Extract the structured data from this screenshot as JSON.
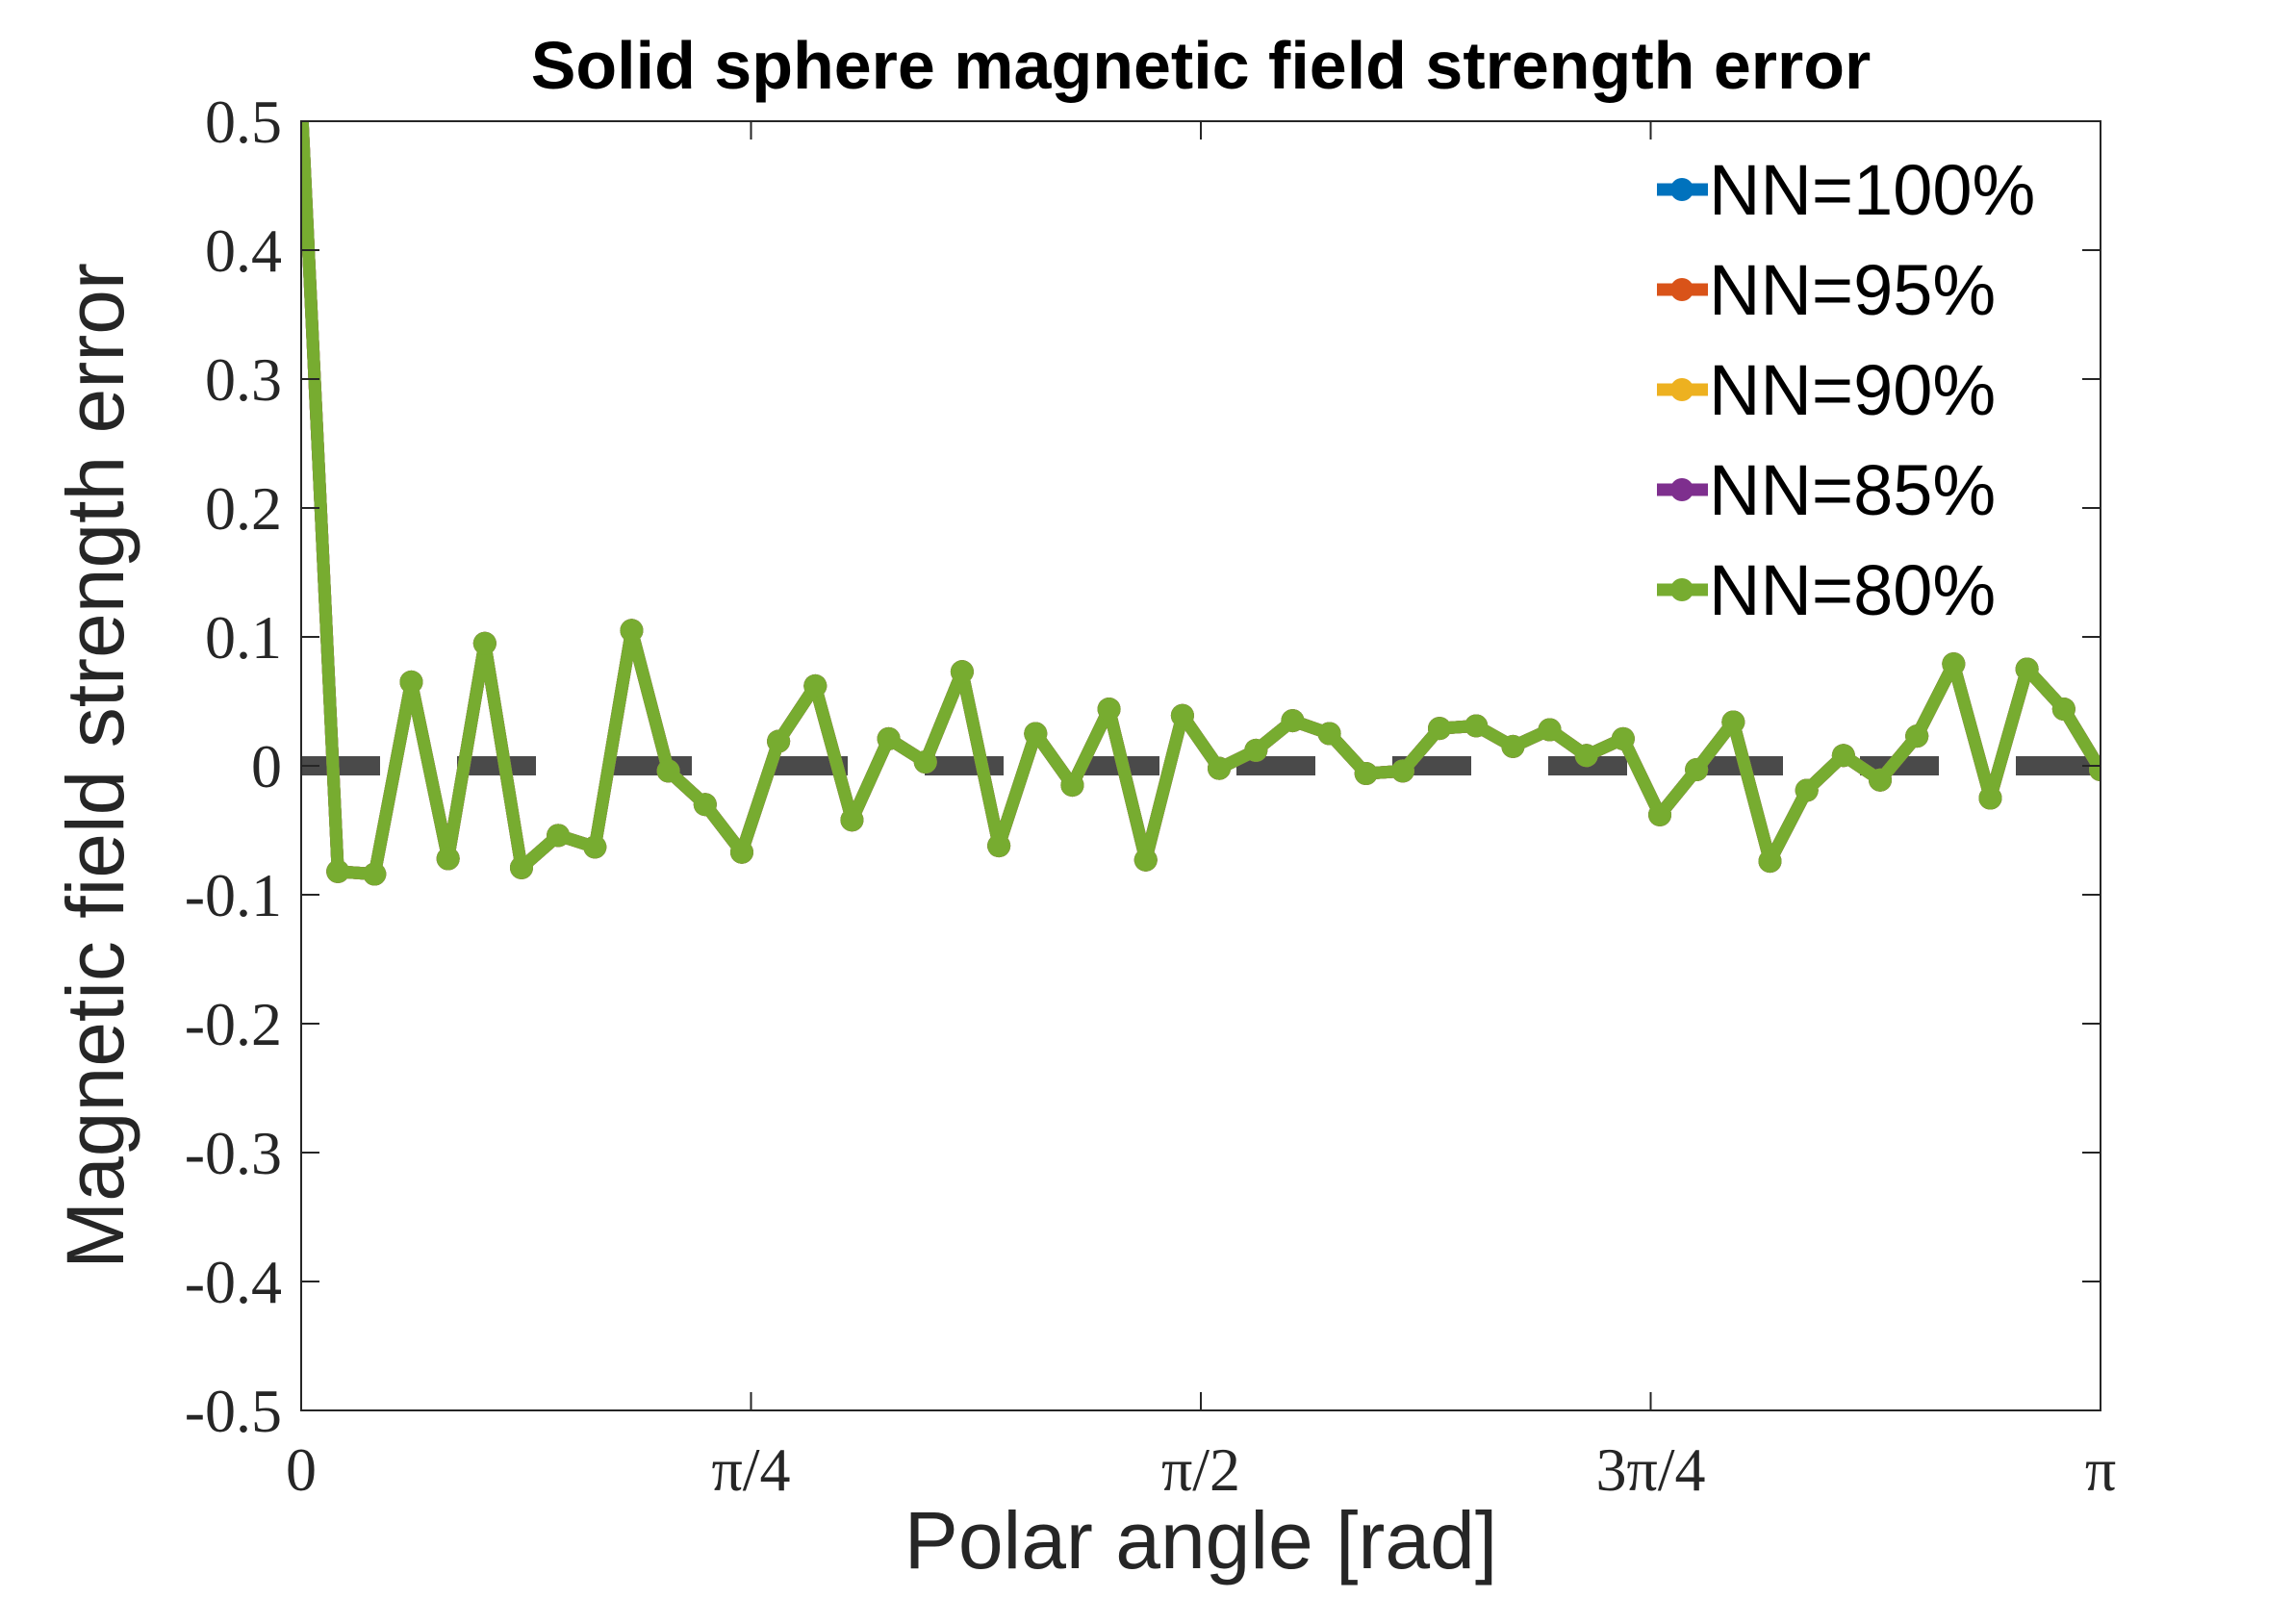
{
  "chart_data": {
    "type": "line",
    "title": "Solid sphere magnetic field strength error",
    "xlabel": "Polar angle [rad]",
    "ylabel": "Magnetic field strength error",
    "xlim": [
      0,
      3.14159
    ],
    "ylim": [
      -0.5,
      0.5
    ],
    "x_ticks": [
      {
        "value": 0,
        "label": "0"
      },
      {
        "value": 0.785398,
        "label": "π/4"
      },
      {
        "value": 1.570796,
        "label": "π/2"
      },
      {
        "value": 2.356194,
        "label": "3π/4"
      },
      {
        "value": 3.141593,
        "label": "π"
      }
    ],
    "y_ticks": [
      {
        "value": 0.5,
        "label": "0.5"
      },
      {
        "value": 0.4,
        "label": "0.4"
      },
      {
        "value": 0.3,
        "label": "0.3"
      },
      {
        "value": 0.2,
        "label": "0.2"
      },
      {
        "value": 0.1,
        "label": "0.1"
      },
      {
        "value": 0,
        "label": "0"
      },
      {
        "value": -0.1,
        "label": "-0.1"
      },
      {
        "value": -0.2,
        "label": "-0.2"
      },
      {
        "value": -0.3,
        "label": "-0.3"
      },
      {
        "value": -0.4,
        "label": "-0.4"
      },
      {
        "value": -0.5,
        "label": "-0.5"
      }
    ],
    "grid": false,
    "legend_position": "top-right",
    "reference_line": {
      "y": 0,
      "style": "dashed",
      "color": "#404040"
    },
    "x": [
      0,
      0.0641,
      0.1282,
      0.1923,
      0.2565,
      0.3206,
      0.3847,
      0.4488,
      0.5129,
      0.577,
      0.6411,
      0.7053,
      0.7694,
      0.8335,
      0.8976,
      0.9617,
      1.0258,
      1.0899,
      1.154,
      1.2182,
      1.2823,
      1.3464,
      1.4105,
      1.4746,
      1.5387,
      1.6028,
      1.667,
      1.7311,
      1.7952,
      1.8593,
      1.9234,
      1.9875,
      2.0516,
      2.1158,
      2.1799,
      2.244,
      2.3081,
      2.3722,
      2.4363,
      2.5004,
      2.5645,
      2.6287,
      2.6928,
      2.7569,
      2.821,
      2.8851,
      2.9492,
      3.0133,
      3.0775,
      3.1416
    ],
    "series": [
      {
        "name": "NN=100%",
        "color": "#0072BD",
        "values": [
          0.52,
          -0.082,
          -0.084,
          0.065,
          -0.072,
          0.095,
          -0.079,
          -0.054,
          -0.063,
          0.105,
          -0.004,
          -0.03,
          -0.067,
          0.019,
          0.062,
          -0.042,
          0.021,
          0.003,
          0.073,
          -0.062,
          0.025,
          -0.015,
          0.044,
          -0.073,
          0.039,
          -0.002,
          0.012,
          0.035,
          0.025,
          -0.006,
          -0.004,
          0.029,
          0.031,
          0.015,
          0.028,
          0.008,
          0.021,
          -0.038,
          -0.003,
          0.034,
          -0.074,
          -0.019,
          0.008,
          -0.011,
          0.023,
          0.079,
          -0.025,
          0.075,
          0.044,
          -0.003
        ]
      },
      {
        "name": "NN=95%",
        "color": "#D95319",
        "values": [
          0.52,
          -0.082,
          -0.084,
          0.065,
          -0.072,
          0.095,
          -0.079,
          -0.054,
          -0.063,
          0.105,
          -0.004,
          -0.03,
          -0.067,
          0.019,
          0.062,
          -0.042,
          0.021,
          0.003,
          0.073,
          -0.062,
          0.025,
          -0.015,
          0.044,
          -0.073,
          0.039,
          -0.002,
          0.012,
          0.035,
          0.025,
          -0.006,
          -0.004,
          0.029,
          0.031,
          0.015,
          0.028,
          0.008,
          0.021,
          -0.038,
          -0.003,
          0.034,
          -0.074,
          -0.019,
          0.008,
          -0.011,
          0.023,
          0.079,
          -0.025,
          0.075,
          0.044,
          -0.003
        ]
      },
      {
        "name": "NN=90%",
        "color": "#EDB120",
        "values": [
          0.52,
          -0.082,
          -0.084,
          0.065,
          -0.072,
          0.095,
          -0.079,
          -0.054,
          -0.063,
          0.105,
          -0.004,
          -0.03,
          -0.067,
          0.019,
          0.062,
          -0.042,
          0.021,
          0.003,
          0.073,
          -0.062,
          0.025,
          -0.015,
          0.044,
          -0.073,
          0.039,
          -0.002,
          0.012,
          0.035,
          0.025,
          -0.006,
          -0.004,
          0.029,
          0.031,
          0.015,
          0.028,
          0.008,
          0.021,
          -0.038,
          -0.003,
          0.034,
          -0.074,
          -0.019,
          0.008,
          -0.011,
          0.023,
          0.079,
          -0.025,
          0.075,
          0.044,
          -0.003
        ]
      },
      {
        "name": "NN=85%",
        "color": "#7E2F8E",
        "values": [
          0.52,
          -0.082,
          -0.084,
          0.065,
          -0.072,
          0.095,
          -0.079,
          -0.054,
          -0.063,
          0.105,
          -0.004,
          -0.03,
          -0.067,
          0.019,
          0.062,
          -0.042,
          0.021,
          0.003,
          0.073,
          -0.062,
          0.025,
          -0.015,
          0.044,
          -0.073,
          0.039,
          -0.002,
          0.012,
          0.035,
          0.025,
          -0.006,
          -0.004,
          0.029,
          0.031,
          0.015,
          0.028,
          0.008,
          0.021,
          -0.038,
          -0.003,
          0.034,
          -0.074,
          -0.019,
          0.008,
          -0.011,
          0.023,
          0.079,
          -0.025,
          0.075,
          0.044,
          -0.003
        ]
      },
      {
        "name": "NN=80%",
        "color": "#77AC30",
        "values": [
          0.52,
          -0.082,
          -0.084,
          0.065,
          -0.072,
          0.095,
          -0.079,
          -0.054,
          -0.063,
          0.105,
          -0.004,
          -0.03,
          -0.067,
          0.019,
          0.062,
          -0.042,
          0.021,
          0.003,
          0.073,
          -0.062,
          0.025,
          -0.015,
          0.044,
          -0.073,
          0.039,
          -0.002,
          0.012,
          0.035,
          0.025,
          -0.006,
          -0.004,
          0.029,
          0.031,
          0.015,
          0.028,
          0.008,
          0.021,
          -0.038,
          -0.003,
          0.034,
          -0.074,
          -0.019,
          0.008,
          -0.011,
          0.023,
          0.079,
          -0.025,
          0.075,
          0.044,
          -0.003
        ]
      }
    ]
  }
}
